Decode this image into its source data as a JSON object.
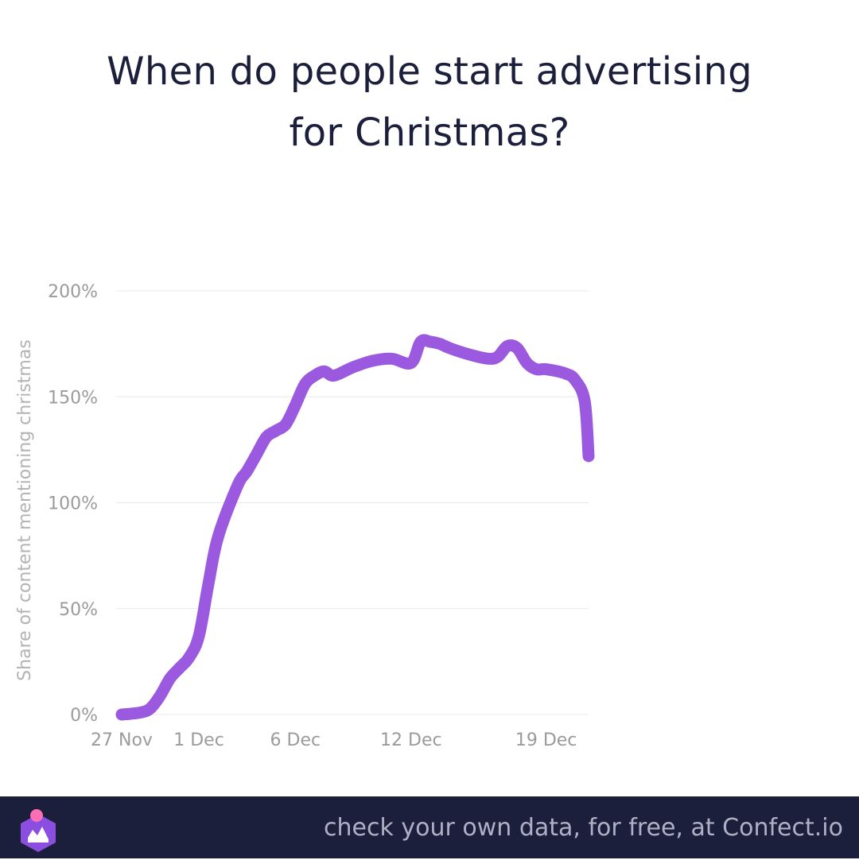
{
  "title_line1": "When do people start advertising",
  "title_line2": "for Christmas?",
  "footer": {
    "text": "check your own data, for free, at Confect.io",
    "logo_icon": "confect-logo-icon"
  },
  "colors": {
    "line": "#9b59e0",
    "background": "#ffffff",
    "footer_bg": "#1b1f3b",
    "axis_text": "#9b9b9b",
    "grid": "#e8e8e8",
    "title": "#1b1f3b"
  },
  "chart_data": {
    "type": "line",
    "title": "When do people start advertising for Christmas?",
    "xlabel": "",
    "ylabel": "Share of content mentioning christmas",
    "y_unit": "%",
    "ylim": [
      0,
      200
    ],
    "yticks": [
      0,
      50,
      100,
      150,
      200
    ],
    "ytick_labels": [
      "0%",
      "50%",
      "100%",
      "150%",
      "200%"
    ],
    "xtick_labels": [
      "27 Nov",
      "1 Dec",
      "6 Dec",
      "12 Dec",
      "19 Dec"
    ],
    "xtick_positions": [
      0,
      4,
      9,
      15,
      22
    ],
    "xlim": [
      0,
      24.2
    ],
    "grid": true,
    "legend": "none",
    "series": [
      {
        "x": [
          0,
          1,
          1.5,
          2,
          2.5,
          3,
          3.5,
          4,
          4.5,
          5,
          6,
          6.5,
          7,
          7.5,
          8,
          8.5,
          9,
          9.5,
          10,
          10.5,
          11,
          12,
          13,
          14,
          15,
          15.5,
          16,
          16.5,
          17,
          18,
          19,
          19.5,
          20,
          20.5,
          21,
          21.5,
          22,
          23,
          23.5,
          24,
          24.2
        ],
        "y": [
          0,
          1,
          3,
          9,
          17,
          22,
          27,
          37,
          62,
          84,
          108,
          115,
          123,
          131,
          134,
          137,
          146,
          156,
          160,
          162,
          160,
          164,
          167,
          168,
          166,
          176,
          176,
          175,
          173,
          170,
          168,
          169,
          174,
          173,
          166,
          163,
          163,
          161,
          158,
          148,
          122
        ]
      }
    ]
  }
}
